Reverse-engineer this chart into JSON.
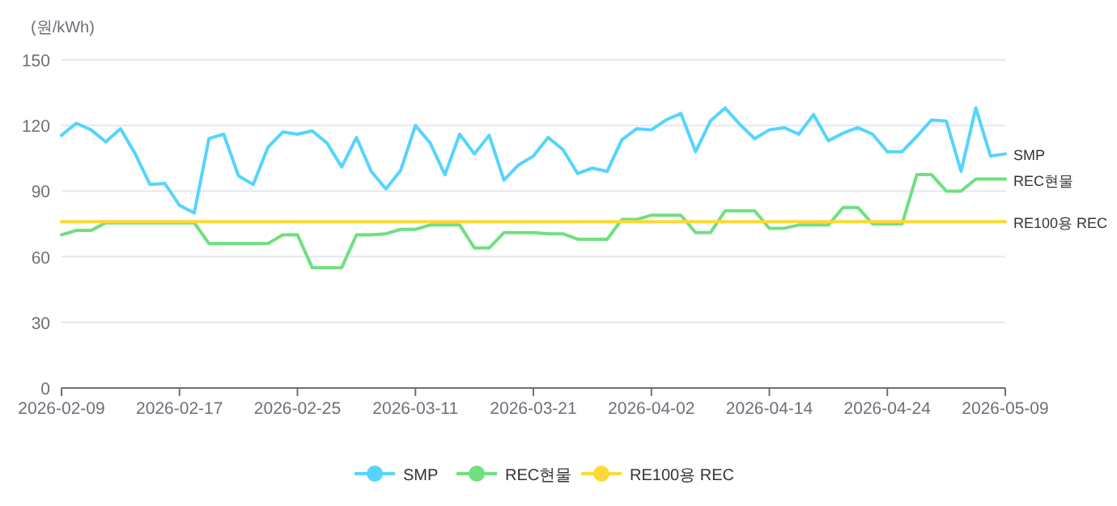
{
  "chart_data": {
    "type": "line",
    "ylabel": "(원/kWh)",
    "categories": [
      "2026-02-09",
      null,
      null,
      null,
      null,
      null,
      null,
      null,
      "2026-02-17",
      null,
      null,
      null,
      null,
      null,
      null,
      null,
      "2026-02-25",
      null,
      null,
      null,
      null,
      null,
      null,
      null,
      "2026-03-11",
      null,
      null,
      null,
      null,
      null,
      null,
      null,
      "2026-03-21",
      null,
      null,
      null,
      null,
      null,
      null,
      null,
      "2026-04-02",
      null,
      null,
      null,
      null,
      null,
      null,
      null,
      "2026-04-14",
      null,
      null,
      null,
      null,
      null,
      null,
      null,
      "2026-04-24",
      null,
      null,
      null,
      null,
      null,
      null,
      null,
      "2026-05-09"
    ],
    "series": [
      {
        "name": "SMP",
        "color": "#55d4ff",
        "values": [
          115.5,
          121,
          118,
          112.5,
          118.5,
          107,
          93,
          93.5,
          83.5,
          80,
          114,
          116,
          97,
          93,
          110,
          117,
          116,
          117.5,
          112,
          101,
          114.5,
          99,
          91,
          99.5,
          120,
          112,
          97.5,
          116,
          107,
          115.5,
          95,
          102,
          106,
          114.5,
          109,
          98,
          100.5,
          99,
          113.5,
          118.5,
          118,
          122.5,
          125.5,
          108,
          122,
          128,
          120.5,
          114,
          118,
          119,
          116,
          125,
          113,
          116.5,
          119,
          116,
          108,
          108,
          115,
          122.5,
          122,
          99,
          128,
          106,
          107
        ]
      },
      {
        "name": "REC현물",
        "color": "#6fe07f",
        "values": [
          70,
          72,
          72,
          75.5,
          75.5,
          75.5,
          75.5,
          75.5,
          75.5,
          75.5,
          66,
          66,
          66,
          66,
          66,
          70,
          70,
          55,
          55,
          55,
          70,
          70,
          70.5,
          72.5,
          72.5,
          74.5,
          74.5,
          74.5,
          64,
          64,
          71,
          71,
          71,
          70.5,
          70.5,
          68,
          68,
          68,
          77,
          77,
          79,
          79,
          79,
          71,
          71,
          81,
          81,
          81,
          73,
          73,
          74.5,
          74.5,
          74.5,
          82.5,
          82.5,
          75,
          75,
          75,
          97.5,
          97.5,
          90,
          90,
          95.5,
          95.5,
          95.5
        ]
      },
      {
        "name": "RE100용 REC",
        "color": "#fdd835",
        "values": [
          76,
          76,
          76,
          76,
          76,
          76,
          76,
          76,
          76,
          76,
          76,
          76,
          76,
          76,
          76,
          76,
          76,
          76,
          76,
          76,
          76,
          76,
          76,
          76,
          76,
          76,
          76,
          76,
          76,
          76,
          76,
          76,
          76,
          76,
          76,
          76,
          76,
          76,
          76,
          76,
          76,
          76,
          76,
          76,
          76,
          76,
          76,
          76,
          76,
          76,
          76,
          76,
          76,
          76,
          76,
          76,
          76,
          76,
          76,
          76,
          76,
          76,
          76,
          76,
          76
        ]
      }
    ],
    "ylim": [
      0,
      150
    ],
    "yticks": [
      0,
      30,
      60,
      90,
      120,
      150
    ],
    "grid": "y",
    "legend": "bottom"
  }
}
